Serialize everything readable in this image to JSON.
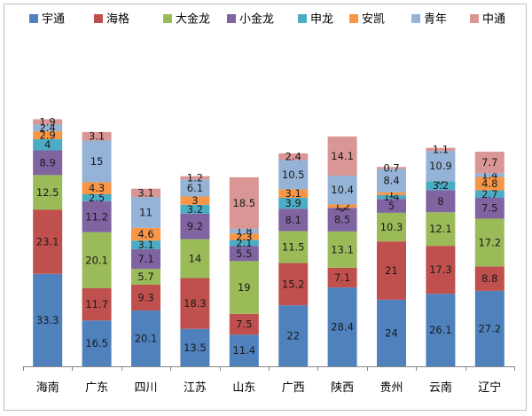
{
  "chart_data": {
    "type": "bar",
    "stacked": true,
    "title": "",
    "xlabel": "",
    "ylabel": "",
    "ylim": [
      0,
      100
    ],
    "grid": false,
    "legend_position": "top",
    "categories": [
      "海南",
      "广东",
      "四川",
      "江苏",
      "山东",
      "广西",
      "陕西",
      "贵州",
      "云南",
      "辽宁"
    ],
    "series": [
      {
        "name": "宇通",
        "color": "#4f81bd",
        "values": [
          33.3,
          16.5,
          20.1,
          13.5,
          11.4,
          22,
          28.4,
          24,
          26.1,
          27.2
        ]
      },
      {
        "name": "海格",
        "color": "#c0504d",
        "values": [
          23.1,
          11.7,
          9.3,
          18.3,
          7.5,
          15.2,
          7.1,
          21,
          17.3,
          8.8
        ]
      },
      {
        "name": "大金龙",
        "color": "#9bbb59",
        "values": [
          12.5,
          20.1,
          5.7,
          14,
          19,
          11.5,
          13.1,
          10.3,
          12.1,
          17.2
        ]
      },
      {
        "name": "小金龙",
        "color": "#8064a2",
        "values": [
          8.9,
          11.2,
          7.1,
          9.2,
          5.5,
          8.1,
          8.5,
          5,
          8,
          7.5
        ]
      },
      {
        "name": "申龙",
        "color": "#4bacc6",
        "values": [
          4,
          2.5,
          3.1,
          3.2,
          2.1,
          3.9,
          0,
          1.4,
          3.2,
          2.7
        ]
      },
      {
        "name": "安凯",
        "color": "#f79646",
        "values": [
          2.9,
          4.3,
          4.6,
          3,
          2.3,
          3.1,
          1.2,
          1,
          0,
          4.8
        ]
      },
      {
        "name": "青年",
        "color": "#95b3d7",
        "values": [
          2.4,
          15,
          11,
          6.1,
          1.8,
          10.5,
          10.4,
          8.4,
          10.9,
          1.4
        ]
      },
      {
        "name": "中通",
        "color": "#d99694",
        "values": [
          1.9,
          3.1,
          3.1,
          1.2,
          18.5,
          2.4,
          14.1,
          0.7,
          1.1,
          7.7
        ]
      }
    ],
    "data_labels": [
      [
        "33.3",
        "16.5",
        "20.1",
        "13.5",
        "11.4",
        "22",
        "28.4",
        "24",
        "26.1",
        "27.2"
      ],
      [
        "23.1",
        "11.7",
        "9.3",
        "18.3",
        "7.5",
        "15.2",
        "7.1",
        "21",
        "17.3",
        "8.8"
      ],
      [
        "12.5",
        "20.1",
        "5.7",
        "14",
        "19",
        "11.5",
        "13.1",
        "10.3",
        "12.1",
        "17.2"
      ],
      [
        "8.9",
        "11.2",
        "7.1",
        "9.2",
        "5.5",
        "8.1",
        "8.5",
        "5",
        "8",
        "7.5"
      ],
      [
        "4",
        "2.5",
        "3.1",
        "3.2",
        "2.1",
        "3.9",
        "0",
        "1.4",
        "3.2",
        "2.7"
      ],
      [
        "2.9",
        "4.3",
        "4.6",
        "3",
        "2.3",
        "3.1",
        "1.2",
        "1",
        "0",
        "4.8"
      ],
      [
        "2.4",
        "15",
        "11",
        "6.1",
        "1.8",
        "10.5",
        "10.4",
        "8.4",
        "10.9",
        "1.4"
      ],
      [
        "1.9",
        "3.1",
        "3.1",
        "1.2",
        "18.5",
        "2.4",
        "14.1",
        "0.7",
        "1.1",
        "7.7"
      ]
    ]
  }
}
